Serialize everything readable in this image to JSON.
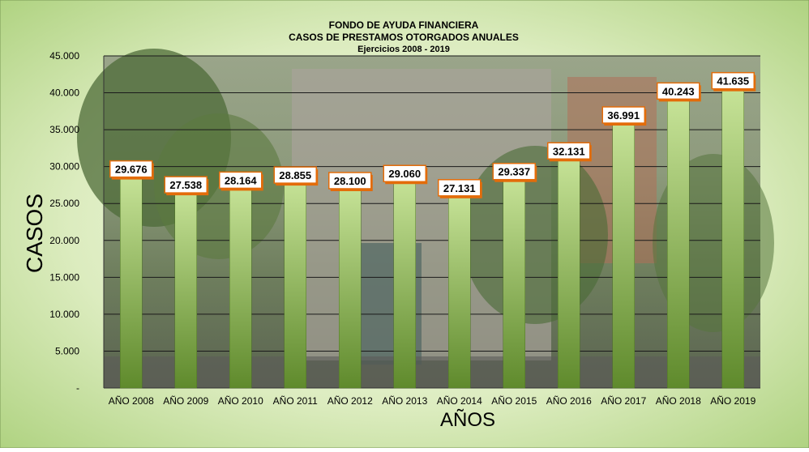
{
  "chart_data": {
    "type": "bar",
    "title": "FONDO DE AYUDA FINANCIERA",
    "subtitle": "CASOS DE PRESTAMOS OTORGADOS ANUALES",
    "subtitle2": "Ejercicios 2008 - 2019",
    "xlabel": "AÑOS",
    "ylabel": "CASOS",
    "ylim": [
      0,
      45000
    ],
    "yticks": [
      0,
      5000,
      10000,
      15000,
      20000,
      25000,
      30000,
      35000,
      40000,
      45000
    ],
    "ytick_labels": [
      "-",
      "5.000",
      "10.000",
      "15.000",
      "20.000",
      "25.000",
      "30.000",
      "35.000",
      "40.000",
      "45.000"
    ],
    "categories": [
      "AÑO 2008",
      "AÑO 2009",
      "AÑO 2010",
      "AÑO 2011",
      "AÑO 2012",
      "AÑO 2013",
      "AÑO 2014",
      "AÑO 2015",
      "AÑO 2016",
      "AÑO 2017",
      "AÑO 2018",
      "AÑO 2019"
    ],
    "values": [
      29676,
      27538,
      28164,
      28855,
      28100,
      29060,
      27131,
      29337,
      32131,
      36991,
      40243,
      41635
    ],
    "value_labels": [
      "29.676",
      "27.538",
      "28.164",
      "28.855",
      "28.100",
      "29.060",
      "27.131",
      "29.337",
      "32.131",
      "36.991",
      "40.243",
      "41.635"
    ],
    "grid": true,
    "legend": "none",
    "colors": {
      "bar_light": "#c9e59a",
      "bar_dark": "#5f8a2c",
      "background_outer": "#b4d68a",
      "gridline": "#1a1a1a",
      "label_border": "#e36c0a",
      "label_fill": "#ffffff"
    }
  }
}
